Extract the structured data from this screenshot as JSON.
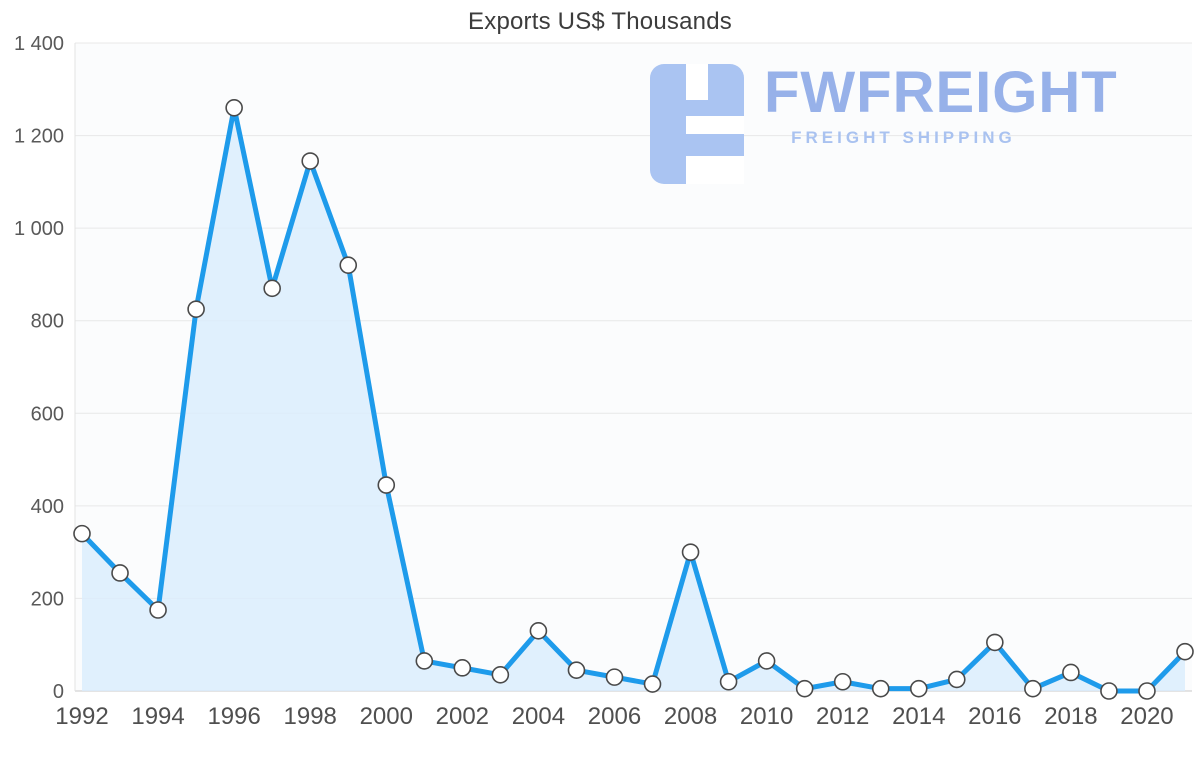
{
  "title": "Exports US$ Thousands",
  "watermark": {
    "brand": "FWFREIGHT",
    "tagline": "FREIGHT SHIPPING",
    "icon_color": "#aac4f2"
  },
  "chart_data": {
    "type": "area",
    "title": "Exports US$ Thousands",
    "xlabel": "",
    "ylabel": "US$ Thousands",
    "x": [
      1992,
      1993,
      1994,
      1995,
      1996,
      1997,
      1998,
      1999,
      2000,
      2001,
      2002,
      2003,
      2004,
      2005,
      2006,
      2007,
      2008,
      2009,
      2010,
      2011,
      2012,
      2013,
      2014,
      2015,
      2016,
      2017,
      2018,
      2019,
      2020,
      2021
    ],
    "values": [
      340,
      255,
      175,
      825,
      1260,
      870,
      1145,
      920,
      445,
      65,
      50,
      35,
      130,
      45,
      30,
      15,
      300,
      20,
      65,
      5,
      20,
      5,
      5,
      25,
      105,
      5,
      40,
      0,
      0,
      85
    ],
    "ylim": [
      0,
      1400
    ],
    "ytick_step": 200,
    "ytick_labels": [
      "0",
      "200",
      "400",
      "600",
      "800",
      "1 000",
      "1 200",
      "1 400"
    ],
    "xtick_every": 2,
    "grid": true,
    "legend_position": "none",
    "colors": {
      "line": "#1e9beb",
      "fill": "#d9ecfc",
      "fill_opacity": "0.8",
      "marker_fill": "#ffffff",
      "marker_stroke": "#4a4a4a",
      "grid": "#e8e8e8",
      "zero_axis": "#c9c9c9",
      "left_axis": "#e3e3e3",
      "plot_bg": "#fbfcfd",
      "x_text": "#4f4f4f",
      "y_text": "#595959"
    }
  }
}
